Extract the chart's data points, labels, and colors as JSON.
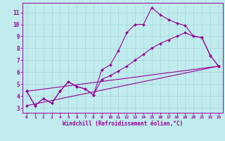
{
  "bg_color": "#c0ecee",
  "line_color": "#990099",
  "grid_color": "#aad8da",
  "xlabel": "Windchill (Refroidissement éolien,°C)",
  "xlim": [
    -0.5,
    23.5
  ],
  "ylim": [
    2.6,
    11.8
  ],
  "xticks": [
    0,
    1,
    2,
    3,
    4,
    5,
    6,
    7,
    8,
    9,
    10,
    11,
    12,
    13,
    14,
    15,
    16,
    17,
    18,
    19,
    20,
    21,
    22,
    23
  ],
  "yticks": [
    3,
    4,
    5,
    6,
    7,
    8,
    9,
    10,
    11
  ],
  "line1_x": [
    0,
    1,
    2,
    3,
    4,
    5,
    6,
    7,
    8,
    9,
    10,
    11,
    12,
    13,
    14,
    15,
    16,
    17,
    18,
    19,
    20,
    21,
    22,
    23
  ],
  "line1_y": [
    4.4,
    3.2,
    3.8,
    3.4,
    4.4,
    5.2,
    4.8,
    4.6,
    4.1,
    6.2,
    6.6,
    7.8,
    9.3,
    10.0,
    10.0,
    11.4,
    10.8,
    10.4,
    10.1,
    9.9,
    9.0,
    8.9,
    7.4,
    6.5
  ],
  "line2_x": [
    0,
    1,
    2,
    3,
    4,
    5,
    6,
    7,
    8,
    9,
    10,
    11,
    12,
    13,
    14,
    15,
    16,
    17,
    18,
    19,
    20,
    21,
    22,
    23
  ],
  "line2_y": [
    4.4,
    3.2,
    3.8,
    3.4,
    4.4,
    5.2,
    4.8,
    4.6,
    4.1,
    5.4,
    5.7,
    6.1,
    6.5,
    7.0,
    7.5,
    8.0,
    8.4,
    8.7,
    9.0,
    9.3,
    9.0,
    8.9,
    7.4,
    6.5
  ],
  "line3_x": [
    0,
    23
  ],
  "line3_y": [
    4.4,
    6.5
  ],
  "line4_x": [
    0,
    23
  ],
  "line4_y": [
    3.2,
    6.5
  ],
  "marker": "D",
  "markersize": 2.0,
  "linewidth": 0.8
}
